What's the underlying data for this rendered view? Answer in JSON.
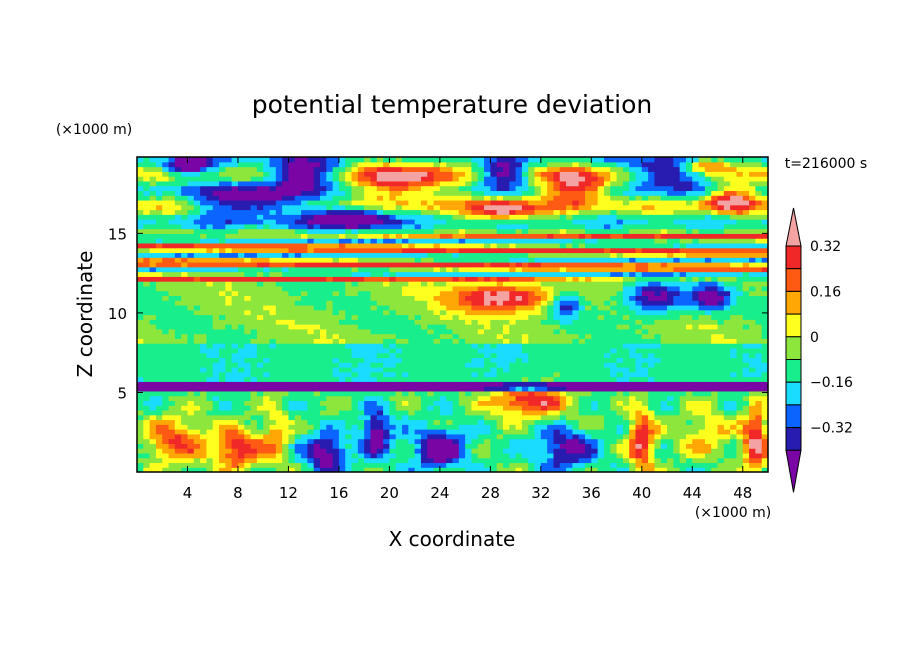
{
  "chart_data": {
    "type": "heatmap",
    "title": "potential temperature deviation",
    "xlabel": "X coordinate",
    "ylabel": "Z coordinate",
    "x_unit": "(×1000 m)",
    "y_unit": "(×1000 m)",
    "time_label": "t=216000 s",
    "xlim": [
      0,
      50
    ],
    "ylim": [
      0,
      19.8
    ],
    "x_ticks": [
      4,
      8,
      12,
      16,
      20,
      24,
      28,
      32,
      36,
      40,
      44,
      48
    ],
    "y_ticks": [
      5,
      10,
      15
    ],
    "colorbar": {
      "levels": [
        -0.4,
        -0.32,
        -0.24,
        -0.16,
        -0.08,
        0,
        0.08,
        0.16,
        0.24,
        0.32,
        0.4
      ],
      "tick_labels": [
        {
          "value": 0.32,
          "label": "0.32"
        },
        {
          "value": 0.16,
          "label": "0.16"
        },
        {
          "value": 0,
          "label": "0"
        },
        {
          "value": -0.16,
          "label": "−0.16"
        },
        {
          "value": -0.32,
          "label": "−0.32"
        }
      ],
      "colors": [
        "#7a05a5",
        "#281cb0",
        "#0c64ff",
        "#19dcff",
        "#19ee8c",
        "#8ce63c",
        "#ffff1e",
        "#ffa705",
        "#ff5a14",
        "#f02828",
        "#f4a3a3"
      ],
      "extend": "both"
    },
    "bands": [
      {
        "z": [
          0,
          5
        ],
        "description": "boundary layer with mixed cold and warm plumes"
      },
      {
        "z": [
          5,
          12
        ],
        "description": "mostly near-zero to slightly positive values"
      },
      {
        "z": [
          12,
          15
        ],
        "description": "alternating strong warm layers"
      },
      {
        "z": [
          15,
          19.8
        ],
        "description": "large warm and cold patches"
      }
    ]
  }
}
